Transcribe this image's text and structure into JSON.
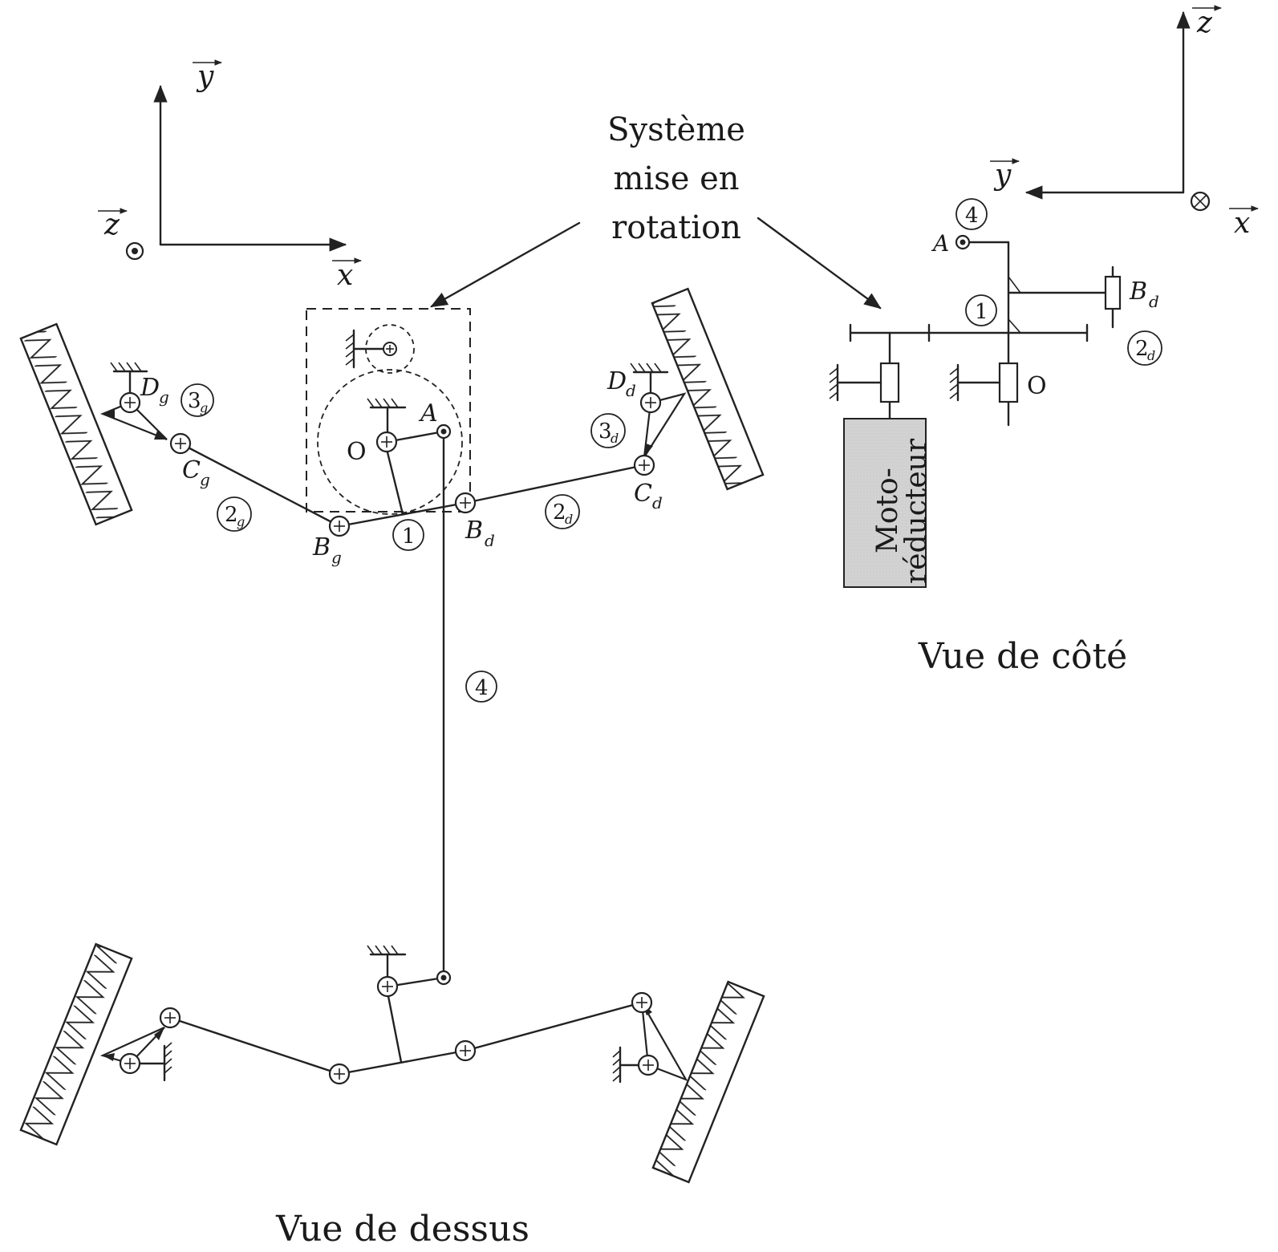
{
  "title": "Système mise en rotation",
  "title_lines": [
    "Système",
    "mise en",
    "rotation"
  ],
  "view_top": "Vue de dessus",
  "view_side": "Vue de côté",
  "motor_line1": "Moto-",
  "motor_line2": "réducteur",
  "axes": {
    "x": "x",
    "y": "y",
    "z": "z"
  },
  "points": {
    "A": "A",
    "O": "O",
    "Bg": "B",
    "Bg_sub": "g",
    "Bd": "B",
    "Bd_sub": "d",
    "Cg": "C",
    "Cg_sub": "g",
    "Cd": "C",
    "Cd_sub": "d",
    "Dg": "D",
    "Dg_sub": "g",
    "Dd": "D",
    "Dd_sub": "d"
  },
  "parts": {
    "p1": "1",
    "p2": "2",
    "p3": "3",
    "p4": "4",
    "sub_g": "g",
    "sub_d": "d"
  }
}
